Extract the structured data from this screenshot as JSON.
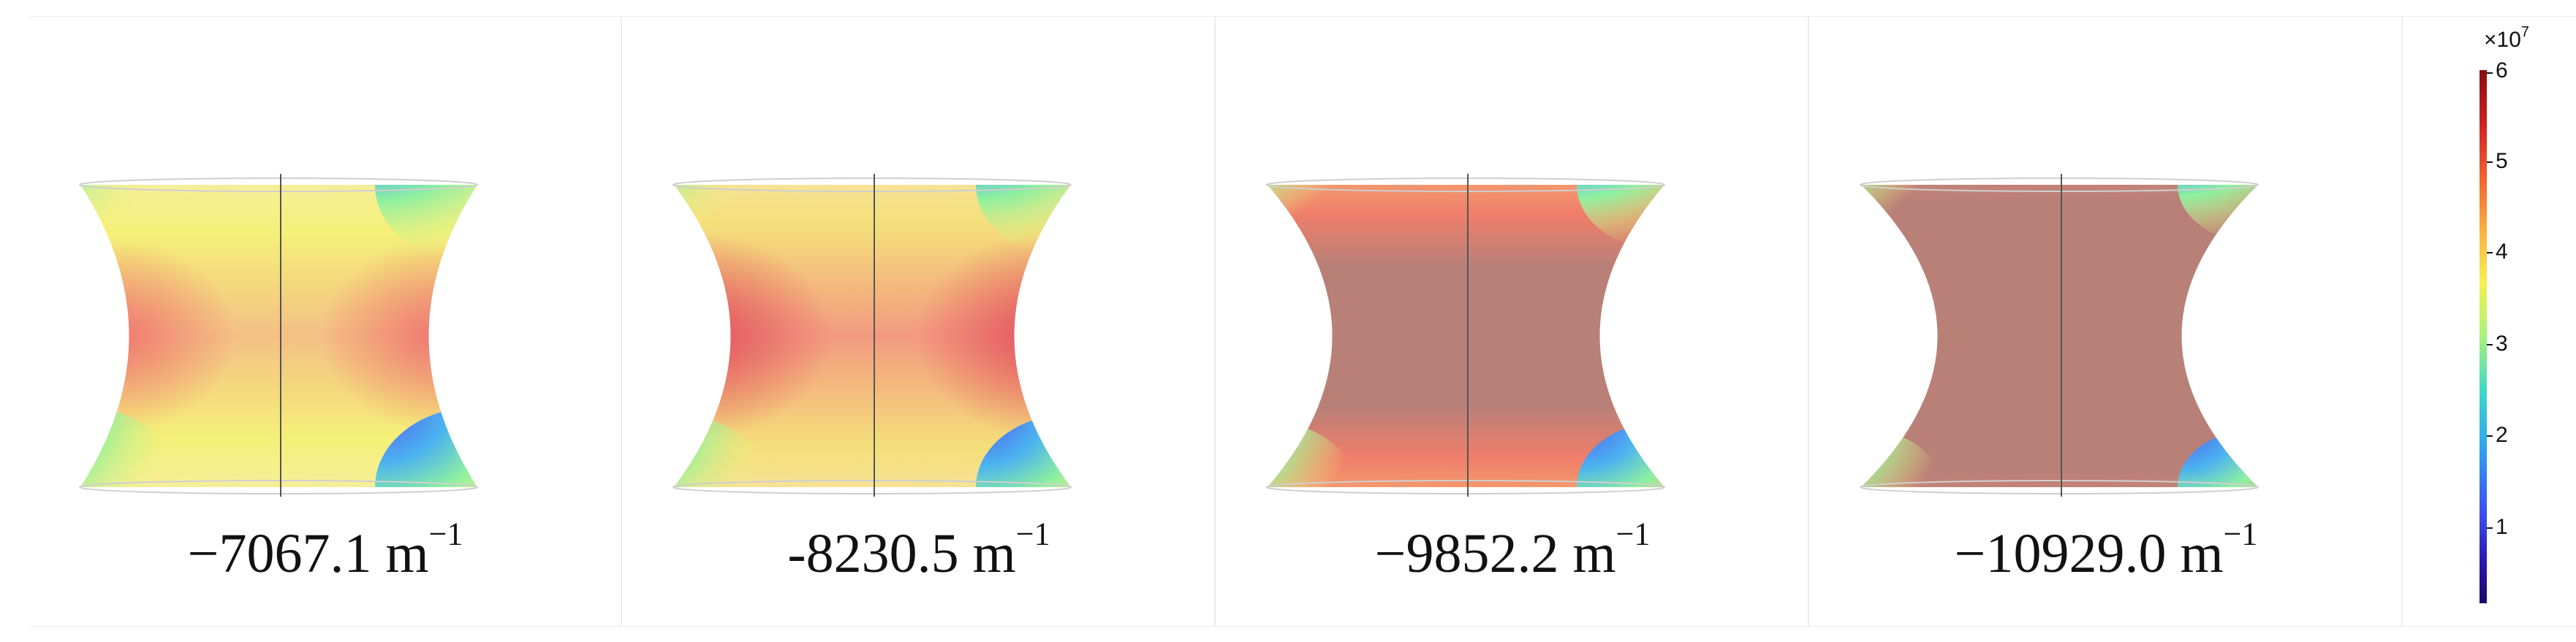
{
  "panels": [
    {
      "label_prefix": "−7067.1 m",
      "label_exponent": "−1"
    },
    {
      "label_prefix": "-8230.5 m",
      "label_exponent": "−1"
    },
    {
      "label_prefix": "−9852.2 m",
      "label_exponent": "−1"
    },
    {
      "label_prefix": "−10929.0 m",
      "label_exponent": "−1"
    }
  ],
  "colorbar": {
    "multiplier_base": "×10",
    "multiplier_exponent": "7",
    "ticks": [
      "1",
      "2",
      "3",
      "4",
      "5",
      "6"
    ],
    "min": 0,
    "max": 6,
    "colors": [
      "#2a0a80",
      "#3f4fe0",
      "#2fa8f0",
      "#3fd6c0",
      "#a8f27a",
      "#f7f050",
      "#f9b040",
      "#f26030",
      "#d02020",
      "#8a0f0f"
    ]
  },
  "colors": {
    "uniform_region": "#b98078",
    "center_line": "#555555"
  }
}
